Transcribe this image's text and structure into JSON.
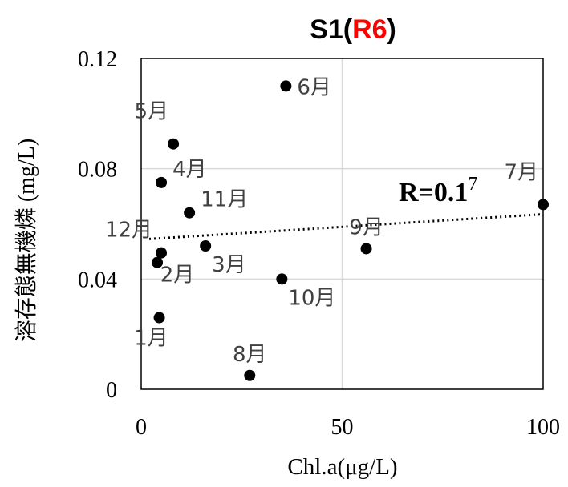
{
  "chart_data": {
    "type": "scatter",
    "title_prefix": "S1(",
    "title_highlight": "R6",
    "title_suffix": ")",
    "xlabel": "Chl.a(μg/L)",
    "ylabel": "溶存態無機燐 (mg/L)",
    "xlim": [
      0,
      100
    ],
    "ylim": [
      0,
      0.12
    ],
    "x_ticks": [
      {
        "value": 0,
        "label": "0"
      },
      {
        "value": 50,
        "label": "50"
      },
      {
        "value": 100,
        "label": "100"
      }
    ],
    "y_ticks": [
      {
        "value": 0,
        "label": "0"
      },
      {
        "value": 0.04,
        "label": "0.04"
      },
      {
        "value": 0.08,
        "label": "0.08"
      },
      {
        "value": 0.12,
        "label": "0.12"
      }
    ],
    "grid": true,
    "trendline": {
      "type": "linear",
      "style": "dotted",
      "x": [
        2,
        100
      ],
      "y": [
        0.0545,
        0.0635
      ]
    },
    "annotation": {
      "text_main": "R=0.1",
      "text_super": "7"
    },
    "points": [
      {
        "x": 4.5,
        "y": 0.026,
        "label": "1月",
        "label_pos": "below-left"
      },
      {
        "x": 5,
        "y": 0.0495,
        "label": "2月",
        "label_pos": "below"
      },
      {
        "x": 16,
        "y": 0.052,
        "label": "3月",
        "label_pos": "below-right"
      },
      {
        "x": 5,
        "y": 0.075,
        "label": "4月",
        "label_pos": "above-right"
      },
      {
        "x": 8,
        "y": 0.089,
        "label": "5月",
        "label_pos": "above-left"
      },
      {
        "x": 36,
        "y": 0.11,
        "label": "6月",
        "label_pos": "right"
      },
      {
        "x": 100,
        "y": 0.067,
        "label": "7月",
        "label_pos": "above-left"
      },
      {
        "x": 27,
        "y": 0.005,
        "label": "8月",
        "label_pos": "above"
      },
      {
        "x": 56,
        "y": 0.051,
        "label": "9月",
        "label_pos": "above"
      },
      {
        "x": 35,
        "y": 0.04,
        "label": "10月",
        "label_pos": "below-right"
      },
      {
        "x": 12,
        "y": 0.064,
        "label": "11月",
        "label_pos": "above-right"
      },
      {
        "x": 4,
        "y": 0.046,
        "label": "12月",
        "label_pos": "above-left"
      }
    ],
    "colors": {
      "marker": "#000000",
      "grid": "#d9d9d9",
      "title": "#000000",
      "highlight": "#ff0000",
      "label": "#404040"
    }
  }
}
